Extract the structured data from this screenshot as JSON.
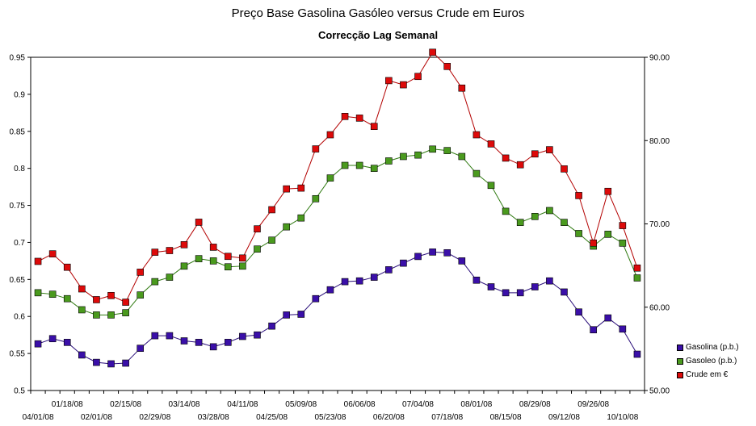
{
  "chart_data": {
    "type": "line",
    "title": "Preço Base Gasolina Gasóleo versus Crude em Euros",
    "subtitle": "Correcção Lag Semanal",
    "y_left": {
      "min": 0.5,
      "max": 0.95,
      "step": 0.05,
      "ticks": [
        "0.95",
        "0.9",
        "0.85",
        "0.8",
        "0.75",
        "0.7",
        "0.65",
        "0.6",
        "0.55",
        "0.5"
      ]
    },
    "y_right": {
      "min": 50,
      "max": 90,
      "ticks": [
        "90.00",
        "80.00",
        "70.00",
        "60.00",
        "50.00"
      ]
    },
    "x_ticks_upper": [
      "01/18/08",
      "02/15/08",
      "03/14/08",
      "04/11/08",
      "05/09/08",
      "06/06/08",
      "07/04/08",
      "08/01/08",
      "08/29/08",
      "09/26/08"
    ],
    "x_ticks_lower": [
      "04/01/08",
      "02/01/08",
      "02/29/08",
      "03/28/08",
      "04/25/08",
      "05/23/08",
      "06/20/08",
      "07/18/08",
      "08/15/08",
      "09/12/08",
      "10/10/08"
    ],
    "grid": false,
    "legend_position": "right",
    "series": [
      {
        "name": "Gasolina (p.b.)",
        "axis": "left",
        "color": "#3a0fa8",
        "line": "#2a0e7a",
        "values": [
          0.563,
          0.57,
          0.565,
          0.548,
          0.538,
          0.536,
          0.537,
          0.557,
          0.574,
          0.574,
          0.567,
          0.565,
          0.559,
          0.565,
          0.573,
          0.575,
          0.587,
          0.602,
          0.603,
          0.624,
          0.636,
          0.647,
          0.648,
          0.653,
          0.663,
          0.672,
          0.681,
          0.687,
          0.686,
          0.675,
          0.649,
          0.64,
          0.632,
          0.632,
          0.64,
          0.648,
          0.633,
          0.606,
          0.582,
          0.598,
          0.583,
          0.549
        ]
      },
      {
        "name": "Gasoleo (p.b.)",
        "axis": "left",
        "color": "#4a9a1e",
        "line": "#2f7a10",
        "values": [
          0.632,
          0.63,
          0.624,
          0.609,
          0.602,
          0.602,
          0.605,
          0.629,
          0.647,
          0.653,
          0.668,
          0.678,
          0.675,
          0.667,
          0.668,
          0.691,
          0.703,
          0.721,
          0.733,
          0.759,
          0.787,
          0.804,
          0.804,
          0.8,
          0.81,
          0.816,
          0.818,
          0.826,
          0.824,
          0.816,
          0.793,
          0.777,
          0.742,
          0.727,
          0.735,
          0.743,
          0.727,
          0.712,
          0.695,
          0.711,
          0.699,
          0.652
        ]
      },
      {
        "name": "Crude em €",
        "axis": "right",
        "color": "#dd0a0a",
        "line": "#b30000",
        "values": [
          65.5,
          66.4,
          64.8,
          62.2,
          60.9,
          61.4,
          60.6,
          64.2,
          66.6,
          66.8,
          67.5,
          70.2,
          67.2,
          66.1,
          65.9,
          69.4,
          71.7,
          74.2,
          74.3,
          79,
          80.7,
          82.9,
          82.7,
          81.7,
          87.2,
          86.7,
          87.7,
          90.6,
          88.9,
          86.3,
          80.7,
          79.6,
          77.9,
          77.1,
          78.4,
          78.9,
          76.6,
          73.4,
          67.7,
          73.9,
          69.8,
          64.7
        ]
      }
    ]
  }
}
